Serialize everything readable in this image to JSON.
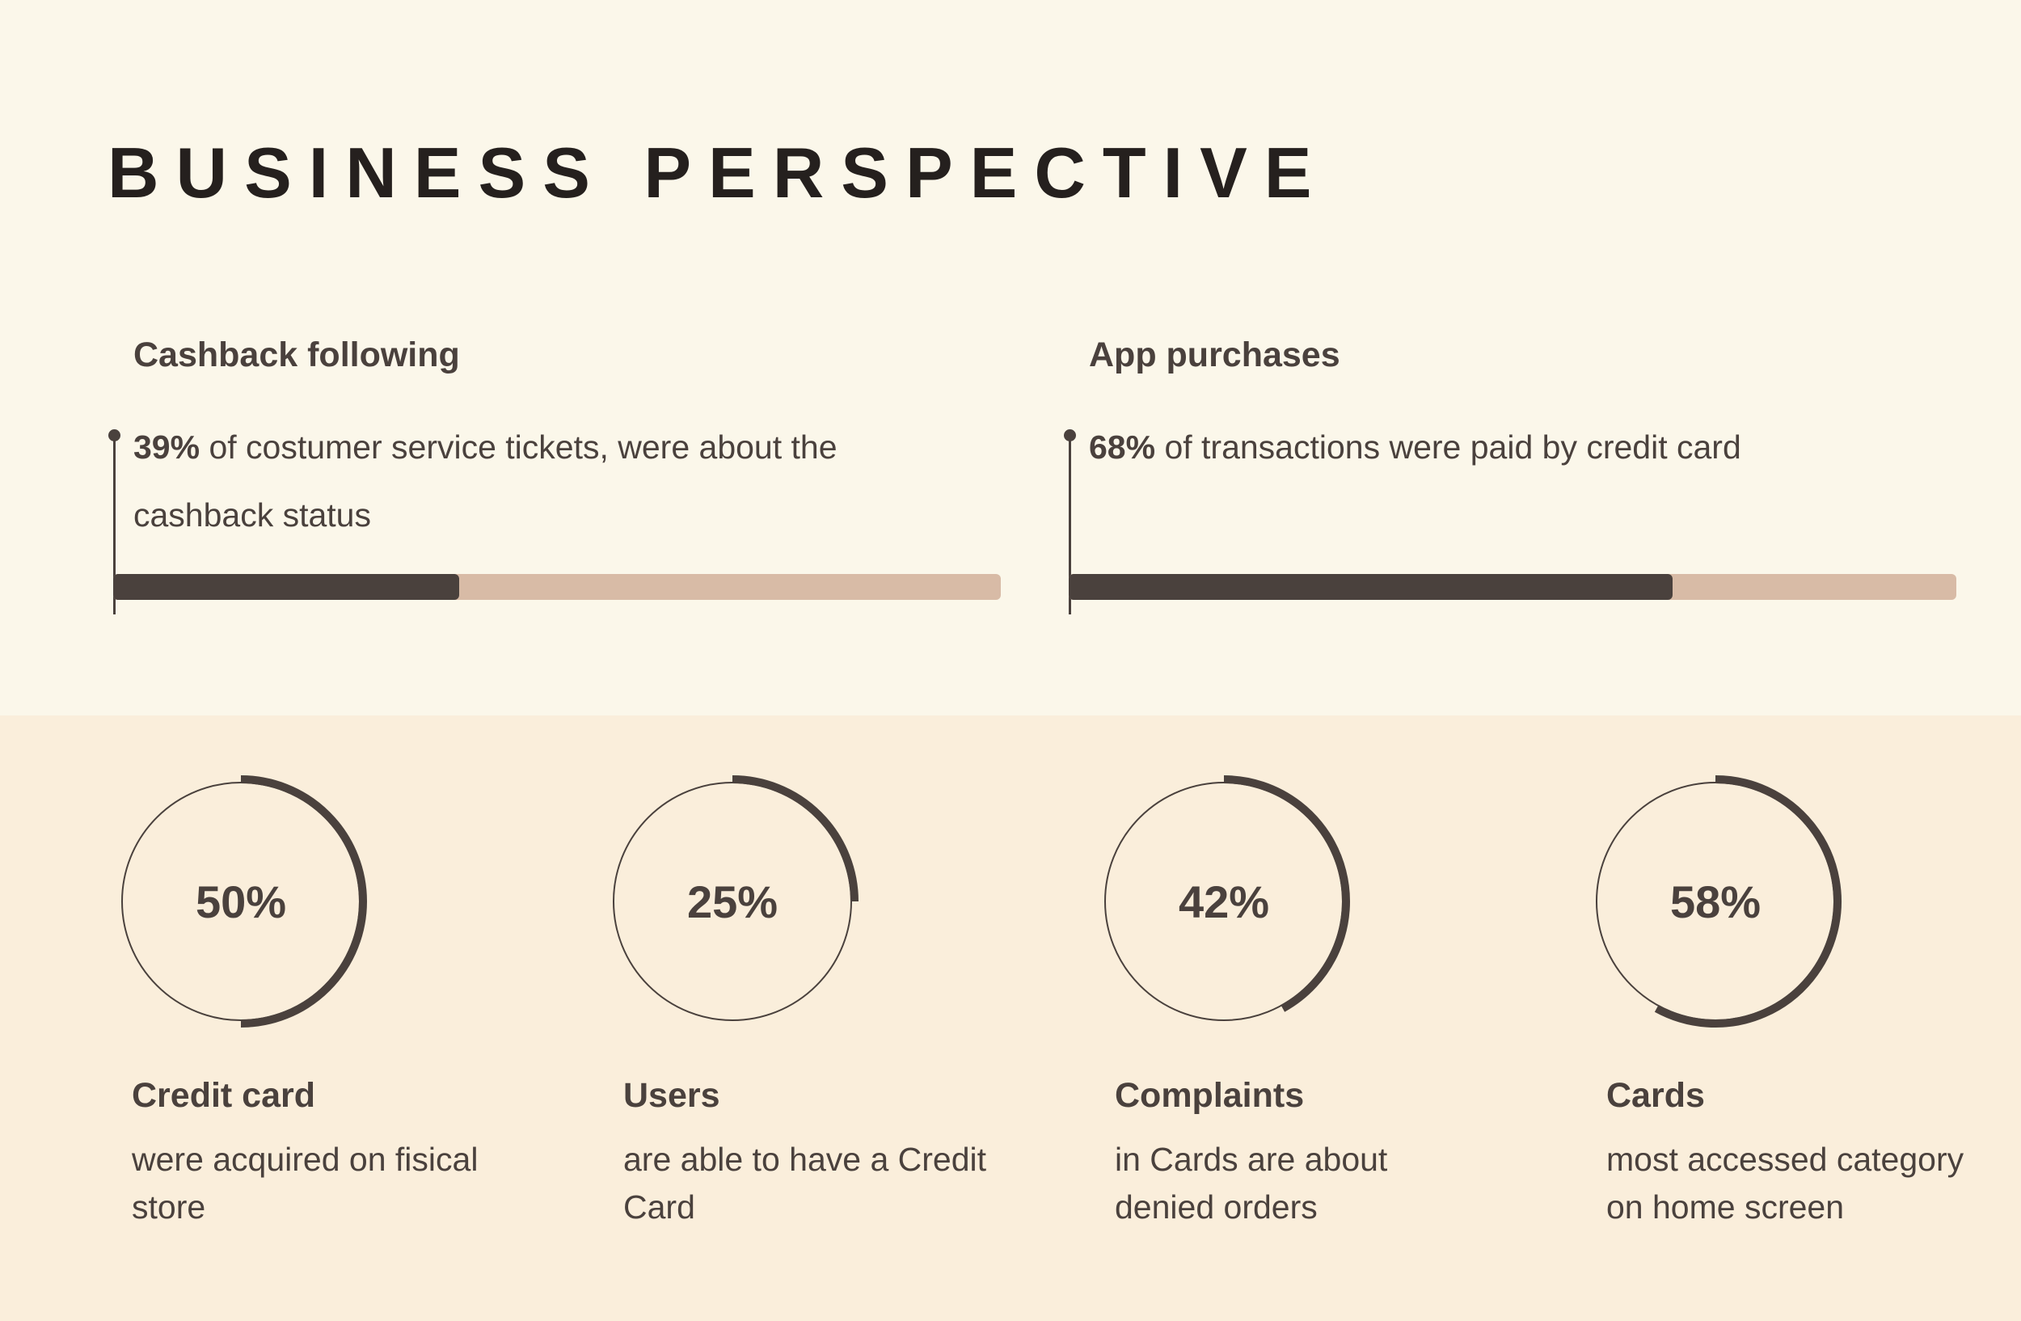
{
  "title": "BUSINESS PERSPECTIVE",
  "colors": {
    "dark": "#4a413d",
    "bar_track": "#d8bba6",
    "top_bg": "#fbf7ea",
    "bottom_bg": "#faeedb"
  },
  "stats": [
    {
      "heading": "Cashback following",
      "value": "39%",
      "text": " of costumer service tickets, were about the cashback status",
      "fraction": 0.39
    },
    {
      "heading": "App purchases",
      "value": "68%",
      "text": " of transactions were paid by credit card",
      "fraction": 0.68
    }
  ],
  "kpis": [
    {
      "value": "50%",
      "fraction": 0.5,
      "heading": "Credit card",
      "text": "were acquired on fisical store"
    },
    {
      "value": "25%",
      "fraction": 0.25,
      "heading": "Users",
      "text": "are able to have a Credit Card"
    },
    {
      "value": "42%",
      "fraction": 0.42,
      "heading": "Complaints",
      "text": "in Cards are about denied orders"
    },
    {
      "value": "58%",
      "fraction": 0.58,
      "heading": "Cards",
      "text": "most accessed category on home screen"
    }
  ]
}
